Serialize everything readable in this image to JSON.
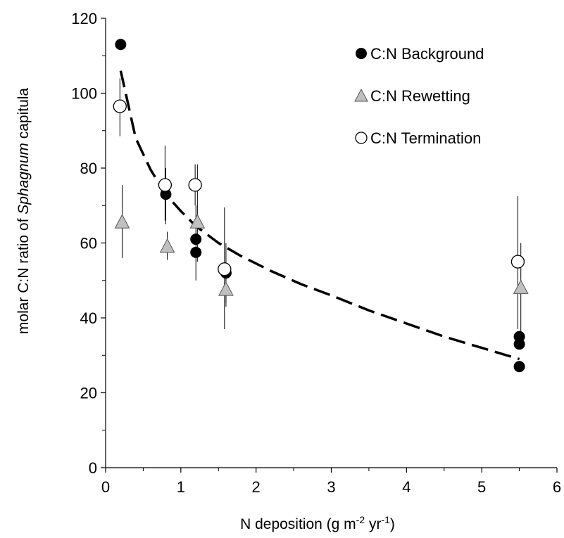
{
  "chart_data": {
    "type": "scatter",
    "xlabel": {
      "prefix": "N deposition  (g m",
      "sup1": "-2",
      "mid": " yr",
      "sup2": "-1",
      "suffix": ")"
    },
    "ylabel": {
      "prefix": "molar C:N ratio of ",
      "italic": "Sphagnum",
      "suffix": " capitula"
    },
    "xlim": [
      0,
      6
    ],
    "ylim": [
      0,
      120
    ],
    "x_ticks": [
      "0",
      "1",
      "2",
      "3",
      "4",
      "5",
      "6"
    ],
    "y_ticks": [
      "0",
      "20",
      "40",
      "60",
      "80",
      "100",
      "120"
    ],
    "grid": false,
    "legend_position": "top-right",
    "series": [
      {
        "name": "C:N Background",
        "marker": "filled-circle",
        "color": "#000000",
        "points": [
          {
            "x": 0.2,
            "y": 113
          },
          {
            "x": 0.8,
            "y": 73,
            "err_low": 65,
            "err_high": 80
          },
          {
            "x": 1.2,
            "y": 61,
            "err_low": 50,
            "err_high": 70
          },
          {
            "x": 1.2,
            "y": 57.5
          },
          {
            "x": 1.6,
            "y": 52,
            "err_low": 43,
            "err_high": 60
          },
          {
            "x": 5.5,
            "y": 35
          },
          {
            "x": 5.5,
            "y": 33
          },
          {
            "x": 5.5,
            "y": 27
          }
        ]
      },
      {
        "name": "C:N Rewetting",
        "marker": "gray-triangle",
        "color": "#c0c0c0",
        "points": [
          {
            "x": 0.22,
            "y": 65.5,
            "err_low": 56,
            "err_high": 75.5
          },
          {
            "x": 0.82,
            "y": 59,
            "err_low": 55.5,
            "err_high": 63
          },
          {
            "x": 1.22,
            "y": 65.5,
            "err_low": 55,
            "err_high": 81
          },
          {
            "x": 1.6,
            "y": 47.5,
            "err_low": 44,
            "err_high": 51
          },
          {
            "x": 5.52,
            "y": 48,
            "err_low": 35,
            "err_high": 60
          }
        ]
      },
      {
        "name": "C:N Termination",
        "marker": "open-circle",
        "color": "#ffffff",
        "points": [
          {
            "x": 0.19,
            "y": 96.5,
            "err_low": 88.5,
            "err_high": 104
          },
          {
            "x": 0.79,
            "y": 75.5,
            "err_low": 66,
            "err_high": 86
          },
          {
            "x": 1.19,
            "y": 75.5,
            "err_low": 70,
            "err_high": 81
          },
          {
            "x": 1.58,
            "y": 53,
            "err_low": 37,
            "err_high": 69.5
          },
          {
            "x": 5.48,
            "y": 55,
            "err_low": 37,
            "err_high": 72.5
          }
        ]
      }
    ],
    "trendline": {
      "style": "dashed",
      "x": [
        0.2,
        0.4,
        0.6,
        0.8,
        1.0,
        1.2,
        1.5,
        1.8,
        2.2,
        2.6,
        3.0,
        3.5,
        4.0,
        4.5,
        5.0,
        5.5
      ],
      "y": [
        106,
        88,
        79.5,
        73,
        68.5,
        64.5,
        60,
        56.5,
        52.5,
        49,
        46,
        42,
        38.5,
        35,
        32,
        29
      ]
    }
  }
}
